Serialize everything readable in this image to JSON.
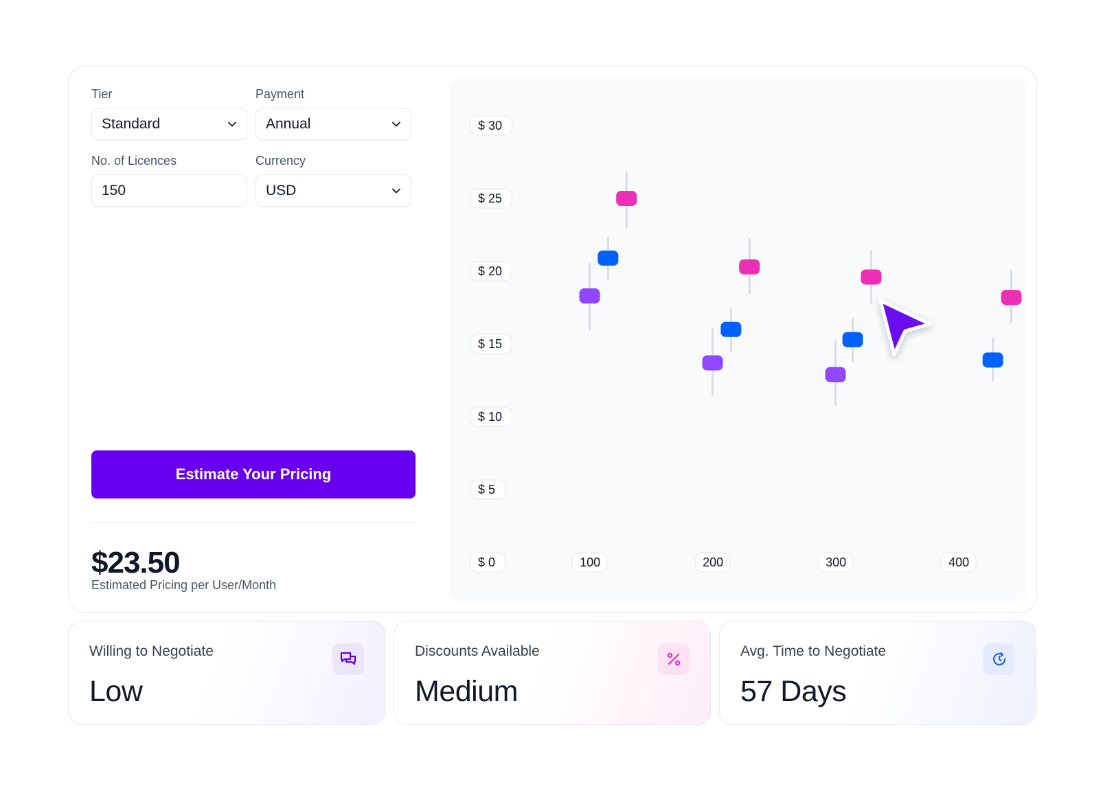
{
  "form": {
    "tier_label": "Tier",
    "tier_value": "Standard",
    "payment_label": "Payment",
    "payment_value": "Annual",
    "licences_label": "No. of Licences",
    "licences_value": "150",
    "currency_label": "Currency",
    "currency_value": "USD"
  },
  "estimate_button": "Estimate Your Pricing",
  "result": {
    "price": "$23.50",
    "caption": "Estimated Pricing per User/Month"
  },
  "stats": [
    {
      "label": "Willing to Negotiate",
      "value": "Low",
      "icon": "chat-icon",
      "color": "#6600ee"
    },
    {
      "label": "Discounts Available",
      "value": "Medium",
      "icon": "percent-icon",
      "color": "#ec2fb5"
    },
    {
      "label": "Avg. Time to Negotiate",
      "value": "57 Days",
      "icon": "refresh-clock-icon",
      "color": "#2563eb"
    }
  ],
  "colors": {
    "accent": "#6600ee",
    "purple_series": "#9146ff",
    "blue_series": "#0061fe",
    "pink_series": "#ec2fb5"
  },
  "chart_data": {
    "type": "scatter",
    "x_ticks": [
      "100",
      "200",
      "300",
      "400"
    ],
    "y_ticks": [
      "$ 0",
      "$ 5",
      "$ 10",
      "$ 15",
      "$ 20",
      "$ 25",
      "$ 30"
    ],
    "xlim": [
      50,
      450
    ],
    "ylim": [
      0,
      30
    ],
    "series": [
      {
        "color": "#9146ff",
        "points": [
          {
            "x": 100,
            "y": 18.3,
            "low": 16.0,
            "high": 20.5
          },
          {
            "x": 200,
            "y": 13.7,
            "low": 11.5,
            "high": 16.0
          },
          {
            "x": 300,
            "y": 12.9,
            "low": 10.8,
            "high": 15.2
          }
        ]
      },
      {
        "color": "#0061fe",
        "points": [
          {
            "x": 115,
            "y": 20.9,
            "low": 19.5,
            "high": 22.3
          },
          {
            "x": 215,
            "y": 16.0,
            "low": 14.5,
            "high": 17.4
          },
          {
            "x": 314,
            "y": 15.3,
            "low": 13.8,
            "high": 16.7
          },
          {
            "x": 428,
            "y": 13.9,
            "low": 12.5,
            "high": 15.4
          }
        ]
      },
      {
        "color": "#ec2fb5",
        "points": [
          {
            "x": 130,
            "y": 25.0,
            "low": 23.0,
            "high": 26.8
          },
          {
            "x": 230,
            "y": 20.3,
            "low": 18.5,
            "high": 22.2
          },
          {
            "x": 329,
            "y": 19.6,
            "low": 17.8,
            "high": 21.4
          },
          {
            "x": 443,
            "y": 18.2,
            "low": 16.5,
            "high": 20.0
          }
        ]
      }
    ]
  }
}
